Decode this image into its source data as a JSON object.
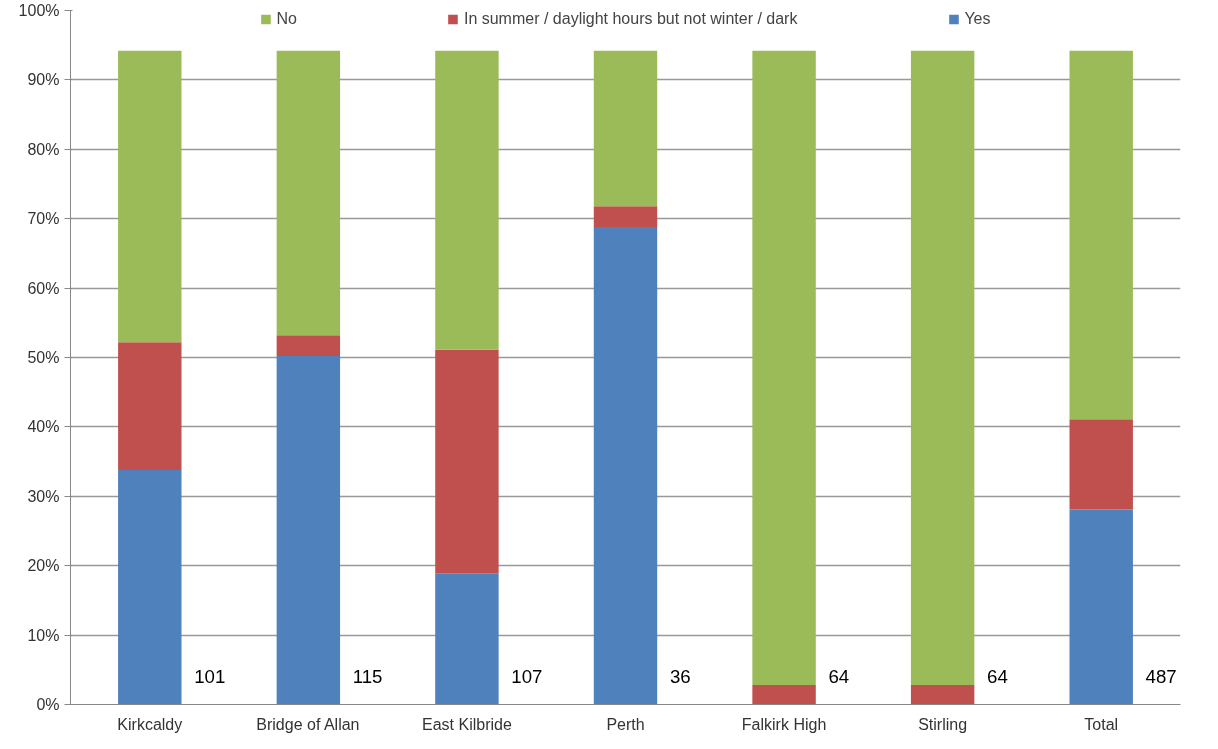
{
  "chart_data": {
    "type": "bar",
    "stacked": true,
    "categories": [
      "Kirkcaldy",
      "Bridge of Allan",
      "East Kilbride",
      "Perth",
      "Falkirk High",
      "Stirling",
      "Total"
    ],
    "series": [
      {
        "name": "Yes",
        "color": "#4f81bd",
        "values": [
          33.8,
          50.2,
          18.9,
          68.8,
          0,
          0,
          28.1
        ]
      },
      {
        "name": "In summer / daylight hours but not winter / dark",
        "color": "#c0504d",
        "values": [
          18.4,
          3.0,
          32.2,
          3.0,
          2.8,
          2.8,
          13.0
        ]
      },
      {
        "name": "No",
        "color": "#9bbb59",
        "values": [
          42.0,
          41.0,
          43.1,
          22.4,
          91.4,
          91.4,
          53.1
        ]
      }
    ],
    "ylim": [
      0,
      100
    ],
    "yticks": [
      {
        "value": 0,
        "label": "0%"
      },
      {
        "value": 10,
        "label": "10%"
      },
      {
        "value": 20,
        "label": "20%"
      },
      {
        "value": 30,
        "label": "30%"
      },
      {
        "value": 40,
        "label": "40%"
      },
      {
        "value": 50,
        "label": "50%"
      },
      {
        "value": 60,
        "label": "60%"
      },
      {
        "value": 70,
        "label": "70%"
      },
      {
        "value": 80,
        "label": "80%"
      },
      {
        "value": 90,
        "label": "90%"
      },
      {
        "value": 100,
        "label": "100%"
      }
    ],
    "grid": "y",
    "legend": "top",
    "annotations": [
      "101",
      "115",
      "107",
      "36",
      "64",
      "64",
      "487"
    ]
  }
}
